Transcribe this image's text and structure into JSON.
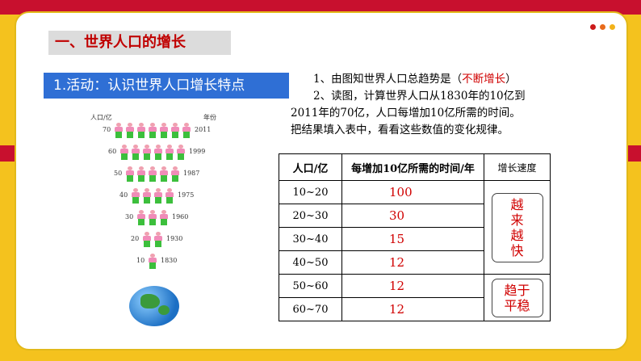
{
  "section_title": "一、世界人口的增长",
  "activity_label": "1.活动：认识世界人口增长特点",
  "figure": {
    "y_label": "人口/亿",
    "x_label": "年份",
    "rows": [
      {
        "population": "70",
        "year": "2011",
        "count": 7
      },
      {
        "population": "60",
        "year": "1999",
        "count": 6
      },
      {
        "population": "50",
        "year": "1987",
        "count": 5
      },
      {
        "population": "40",
        "year": "1975",
        "count": 4
      },
      {
        "population": "30",
        "year": "1960",
        "count": 3
      },
      {
        "population": "20",
        "year": "1930",
        "count": 2
      },
      {
        "population": "10",
        "year": "1830",
        "count": 1
      }
    ]
  },
  "question1": {
    "text": "1、由图知世界人口总趋势是（",
    "answer": "不断增长",
    "close": "）"
  },
  "question2": {
    "line1": "2、读图，计算世界人口从1830年的10亿到",
    "line2": "2011年的70亿，人口每增加10亿所需的时间。",
    "line3": "把结果填入表中，看看这些数值的变化规律。"
  },
  "table": {
    "headers": [
      "人口/亿",
      "每增加10亿所需的时间/年",
      "增长速度"
    ],
    "rows": [
      {
        "range": "10~20",
        "years": "100"
      },
      {
        "range": "20~30",
        "years": "30"
      },
      {
        "range": "30~40",
        "years": "15"
      },
      {
        "range": "40~50",
        "years": "12"
      },
      {
        "range": "50~60",
        "years": "12"
      },
      {
        "range": "60~70",
        "years": "12"
      }
    ],
    "speed_fast": [
      "越",
      "来",
      "越",
      "快"
    ],
    "speed_stable": [
      "趋于",
      "平稳"
    ]
  },
  "colors": {
    "accent_red": "#c8102e",
    "accent_blue": "#2f6fd5",
    "answer_red": "#d00000"
  }
}
